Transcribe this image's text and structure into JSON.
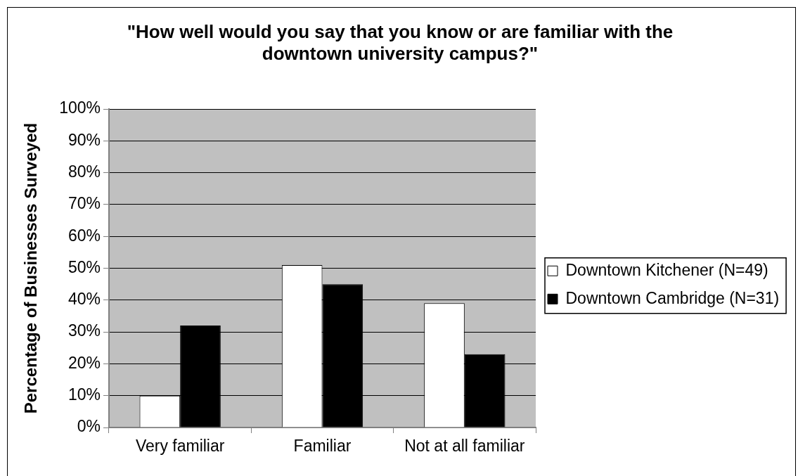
{
  "chart_data": {
    "type": "bar",
    "title": "\"How well would you say that you know or are familiar with the downtown university campus?\"",
    "ylabel": "Percentage of Businesses Surveyed",
    "categories": [
      "Very familiar",
      "Familiar",
      "Not at all familiar"
    ],
    "series": [
      {
        "name": "Downtown Kitchener (N=49)",
        "color": "#ffffff",
        "values": [
          10,
          51,
          39
        ]
      },
      {
        "name": "Downtown Cambridge (N=31)",
        "color": "#000000",
        "values": [
          32,
          45,
          23
        ]
      }
    ],
    "ylim": [
      0,
      100
    ],
    "yticks": [
      {
        "value": 0,
        "label": "0%"
      },
      {
        "value": 10,
        "label": "10%"
      },
      {
        "value": 20,
        "label": "20%"
      },
      {
        "value": 30,
        "label": "30%"
      },
      {
        "value": 40,
        "label": "40%"
      },
      {
        "value": 50,
        "label": "50%"
      },
      {
        "value": 60,
        "label": "60%"
      },
      {
        "value": 70,
        "label": "70%"
      },
      {
        "value": 80,
        "label": "80%"
      },
      {
        "value": 90,
        "label": "90%"
      },
      {
        "value": 100,
        "label": "100%"
      }
    ],
    "grid": "y",
    "legend": "right"
  }
}
